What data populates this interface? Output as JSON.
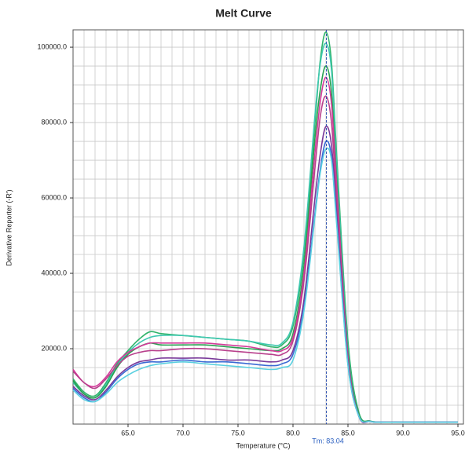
{
  "chart_data": {
    "type": "line",
    "title": "Melt Curve",
    "x_label": "Temperature (°C)",
    "y_label": "Derivative Reporter (-R')",
    "annotation": "Tm: 83.04",
    "tm": 83.04,
    "x": [
      60,
      61,
      62,
      63,
      64,
      65,
      66,
      67,
      68,
      70,
      72,
      74,
      76,
      78,
      79,
      80,
      81,
      82,
      82.5,
      83,
      83.5,
      84,
      85,
      86,
      87,
      88,
      90,
      95
    ],
    "series": [
      {
        "color": "#2fb36a",
        "values": [
          12000,
          8500,
          7500,
          11000,
          16000,
          19500,
          22500,
          24500,
          24000,
          23500,
          23000,
          22500,
          22000,
          20500,
          21000,
          26000,
          45000,
          80000,
          97000,
          104000,
          96000,
          70000,
          22000,
          3000,
          800,
          500,
          500,
          500
        ]
      },
      {
        "color": "#3fc8b0",
        "values": [
          11000,
          8000,
          7000,
          10500,
          15500,
          19000,
          21500,
          23000,
          23500,
          23500,
          23000,
          22500,
          22000,
          21000,
          21500,
          27000,
          47000,
          82000,
          96000,
          101000,
          94000,
          68000,
          20000,
          2500,
          800,
          500,
          500,
          500
        ]
      },
      {
        "color": "#28a050",
        "values": [
          11500,
          8000,
          7000,
          10000,
          15000,
          18500,
          20500,
          21500,
          21000,
          21000,
          21000,
          20500,
          20000,
          19500,
          20000,
          24000,
          42000,
          76000,
          89000,
          95000,
          88000,
          64000,
          19000,
          2500,
          800,
          500,
          500,
          500
        ]
      },
      {
        "color": "#d43a9a",
        "values": [
          14500,
          11000,
          10000,
          12500,
          16500,
          19000,
          20500,
          21500,
          21500,
          21500,
          21500,
          21000,
          20500,
          19500,
          19500,
          23000,
          40000,
          72000,
          86000,
          92000,
          85000,
          62000,
          18000,
          2000,
          700,
          500,
          500,
          500
        ]
      },
      {
        "color": "#b8408c",
        "values": [
          14000,
          11000,
          9500,
          12000,
          15500,
          18000,
          19000,
          19500,
          19500,
          20000,
          20000,
          19500,
          19000,
          18500,
          18500,
          22000,
          38000,
          68000,
          82000,
          87000,
          80000,
          58000,
          17000,
          2000,
          700,
          500,
          500,
          500
        ]
      },
      {
        "color": "#7a3a9a",
        "values": [
          10000,
          7500,
          6500,
          9000,
          12500,
          15000,
          16500,
          17000,
          17500,
          17500,
          17500,
          17000,
          17000,
          16500,
          17000,
          19500,
          33000,
          60000,
          72000,
          79000,
          74000,
          55000,
          16000,
          2000,
          700,
          500,
          500,
          500
        ]
      },
      {
        "color": "#3a6ad4",
        "values": [
          9500,
          7000,
          6000,
          8500,
          12000,
          14500,
          16000,
          16500,
          16500,
          17000,
          16500,
          16500,
          16000,
          15500,
          16000,
          18500,
          31000,
          56000,
          68000,
          75000,
          71000,
          53000,
          16000,
          2000,
          700,
          500,
          500,
          500
        ]
      },
      {
        "color": "#5ad0e0",
        "values": [
          9000,
          6500,
          6000,
          8000,
          11000,
          13000,
          14500,
          15500,
          16000,
          16500,
          16000,
          15500,
          15000,
          14500,
          15000,
          17000,
          30000,
          55000,
          67000,
          73000,
          70000,
          52000,
          15500,
          2000,
          700,
          500,
          500,
          500
        ]
      }
    ],
    "xlim": [
      60,
      95.5
    ],
    "ylim": [
      0,
      104600
    ],
    "xticks": [
      {
        "value": 65,
        "label": "65.0"
      },
      {
        "value": 70,
        "label": "70.0"
      },
      {
        "value": 75,
        "label": "75.0"
      },
      {
        "value": 80,
        "label": "80.0"
      },
      {
        "value": 85,
        "label": "85.0"
      },
      {
        "value": 90,
        "label": "90.0"
      },
      {
        "value": 95,
        "label": "95.0"
      }
    ],
    "yticks": [
      {
        "value": 20000,
        "label": "20000.0"
      },
      {
        "value": 40000,
        "label": "40000.0"
      },
      {
        "value": 60000,
        "label": "60000.0"
      },
      {
        "value": 80000,
        "label": "80000.0"
      },
      {
        "value": 100000,
        "label": "100000.0"
      }
    ],
    "xgrid": [
      61,
      62,
      63,
      64,
      65,
      66,
      67,
      68,
      69,
      70,
      71,
      72,
      73,
      74,
      75,
      76,
      77,
      78,
      79,
      80,
      81,
      82,
      83,
      84,
      85,
      86,
      87,
      88,
      89,
      90,
      91,
      92,
      93,
      94,
      95
    ],
    "ygrid": [
      5000,
      10000,
      15000,
      20000,
      25000,
      30000,
      35000,
      40000,
      45000,
      50000,
      55000,
      60000,
      65000,
      70000,
      75000,
      80000,
      85000,
      90000,
      95000,
      100000
    ],
    "grid": true
  }
}
